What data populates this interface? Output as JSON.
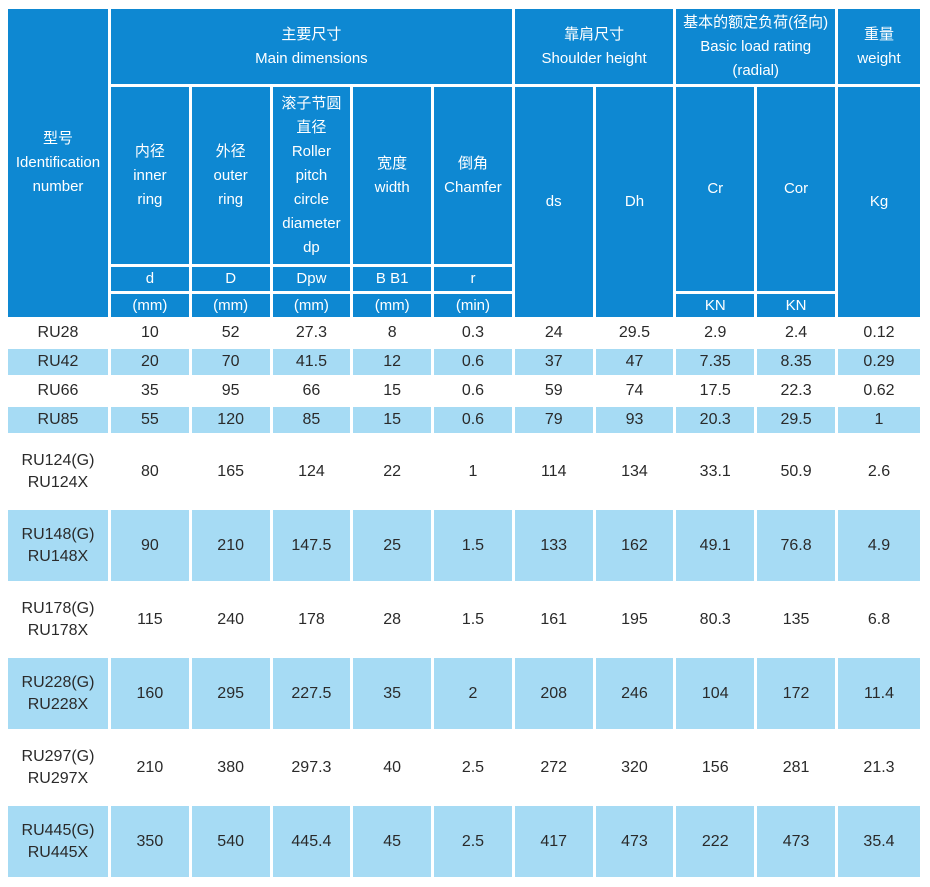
{
  "colors": {
    "header_bg": "#0e88d2",
    "row_alt_bg": "#a6dbf4",
    "row_bg": "#ffffff",
    "header_text": "#ffffff",
    "body_text": "#2a2a2a"
  },
  "header": {
    "identification": "型号\nIdentification number",
    "groups": [
      {
        "label": "主要尺寸\nMain dimensions"
      },
      {
        "label": "靠肩尺寸\nShoulder height"
      },
      {
        "label": "基本的额定负荷(径向)\nBasic load rating\n(radial)"
      },
      {
        "label": "重量\nweight"
      }
    ],
    "columns": [
      {
        "title": "内径\ninner\nring",
        "symbol": "d",
        "unit": "(mm)"
      },
      {
        "title": "外径\nouter\nring",
        "symbol": "D",
        "unit": "(mm)"
      },
      {
        "title": "滚子节圆\n直径\nRoller\npitch\ncircle\ndiameter\ndp",
        "symbol": "Dpw",
        "unit": "(mm)"
      },
      {
        "title": "宽度\nwidth",
        "symbol": "B B1",
        "unit": "(mm)"
      },
      {
        "title": "倒角\nChamfer",
        "symbol": "r",
        "unit": "(min)"
      },
      {
        "title": "ds"
      },
      {
        "title": "Dh"
      },
      {
        "title": "Cr",
        "unit": "KN"
      },
      {
        "title": "Cor",
        "unit": "KN"
      },
      {
        "title": "Kg"
      }
    ]
  },
  "rows": [
    {
      "model": "RU28",
      "values": [
        "10",
        "52",
        "27.3",
        "8",
        "0.3",
        "24",
        "29.5",
        "2.9",
        "2.4",
        "0.12"
      ]
    },
    {
      "model": "RU42",
      "values": [
        "20",
        "70",
        "41.5",
        "12",
        "0.6",
        "37",
        "47",
        "7.35",
        "8.35",
        "0.29"
      ]
    },
    {
      "model": "RU66",
      "values": [
        "35",
        "95",
        "66",
        "15",
        "0.6",
        "59",
        "74",
        "17.5",
        "22.3",
        "0.62"
      ]
    },
    {
      "model": "RU85",
      "values": [
        "55",
        "120",
        "85",
        "15",
        "0.6",
        "79",
        "93",
        "20.3",
        "29.5",
        "1"
      ]
    },
    {
      "model": "RU124(G)\nRU124X",
      "values": [
        "80",
        "165",
        "124",
        "22",
        "1",
        "114",
        "134",
        "33.1",
        "50.9",
        "2.6"
      ]
    },
    {
      "model": "RU148(G)\nRU148X",
      "values": [
        "90",
        "210",
        "147.5",
        "25",
        "1.5",
        "133",
        "162",
        "49.1",
        "76.8",
        "4.9"
      ]
    },
    {
      "model": "RU178(G)\nRU178X",
      "values": [
        "115",
        "240",
        "178",
        "28",
        "1.5",
        "161",
        "195",
        "80.3",
        "135",
        "6.8"
      ]
    },
    {
      "model": "RU228(G)\nRU228X",
      "values": [
        "160",
        "295",
        "227.5",
        "35",
        "2",
        "208",
        "246",
        "104",
        "172",
        "11.4"
      ]
    },
    {
      "model": "RU297(G)\nRU297X",
      "values": [
        "210",
        "380",
        "297.3",
        "40",
        "2.5",
        "272",
        "320",
        "156",
        "281",
        "21.3"
      ]
    },
    {
      "model": "RU445(G)\nRU445X",
      "values": [
        "350",
        "540",
        "445.4",
        "45",
        "2.5",
        "417",
        "473",
        "222",
        "473",
        "35.4"
      ]
    }
  ]
}
